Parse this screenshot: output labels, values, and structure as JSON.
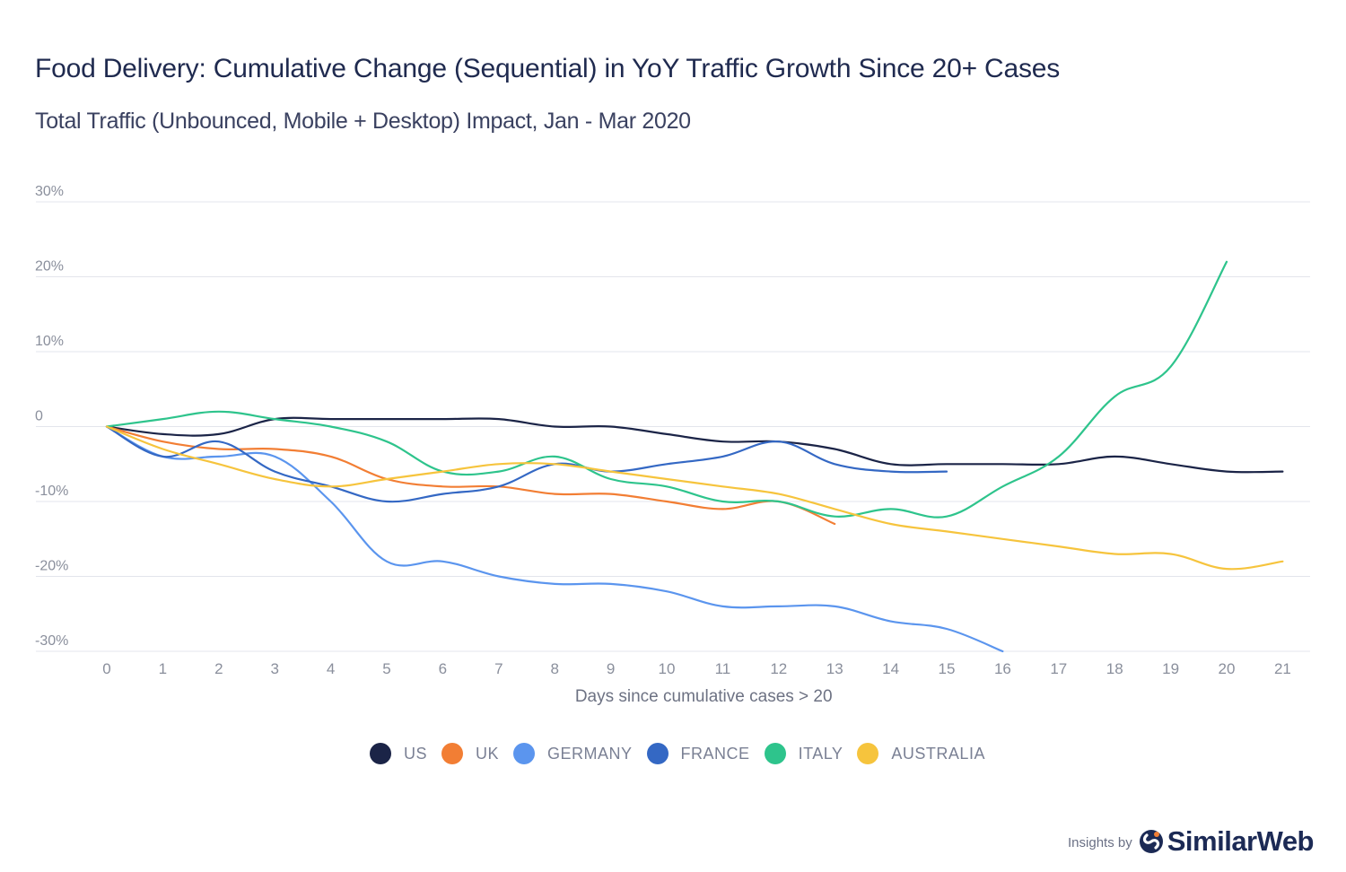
{
  "header": {
    "title": "Food Delivery: Cumulative Change (Sequential) in YoY Traffic Growth Since 20+ Cases",
    "subtitle": "Total Traffic (Unbounced, Mobile + Desktop) Impact, Jan - Mar 2020"
  },
  "branding": {
    "prefix": "Insights by",
    "name": "SimilarWeb",
    "logo_icon": "similarweb-logo-icon"
  },
  "colors": {
    "grid": "#e3e5ec",
    "tick_text": "#8a8f9c",
    "axis_title": "#6d7283"
  },
  "chart_data": {
    "type": "line",
    "title": "Food Delivery: Cumulative Change (Sequential) in YoY Traffic Growth Since 20+ Cases",
    "subtitle": "Total Traffic (Unbounced, Mobile + Desktop) Impact, Jan - Mar 2020",
    "xlabel": "Days since cumulative cases > 20",
    "ylabel": "",
    "x_ticks": [
      "0",
      "1",
      "2",
      "3",
      "4",
      "5",
      "6",
      "7",
      "8",
      "9",
      "10",
      "11",
      "12",
      "13",
      "14",
      "15",
      "16",
      "17",
      "18",
      "19",
      "20",
      "21"
    ],
    "y_ticks": [
      30,
      20,
      10,
      0,
      -10,
      -20,
      -30
    ],
    "y_tick_labels": [
      "30%",
      "20%",
      "10%",
      "0",
      "-10%",
      "-20%",
      "-30%"
    ],
    "xlim": [
      0,
      21
    ],
    "ylim": [
      -30,
      30
    ],
    "grid": true,
    "legend_position": "bottom-center",
    "series": [
      {
        "name": "US",
        "color": "#1b2447",
        "x": [
          0,
          1,
          2,
          3,
          4,
          5,
          6,
          7,
          8,
          9,
          10,
          11,
          12,
          13,
          14,
          15,
          16,
          17,
          18,
          19,
          20,
          21
        ],
        "values": [
          0,
          -1,
          -1,
          1,
          1,
          1,
          1,
          1,
          0,
          0,
          -1,
          -2,
          -2,
          -3,
          -5,
          -5,
          -5,
          -5,
          -4,
          -5,
          -6,
          -6
        ]
      },
      {
        "name": "UK",
        "color": "#f27e34",
        "x": [
          0,
          1,
          2,
          3,
          4,
          5,
          6,
          7,
          8,
          9,
          10,
          11,
          12,
          13
        ],
        "values": [
          0,
          -2,
          -3,
          -3,
          -4,
          -7,
          -8,
          -8,
          -9,
          -9,
          -10,
          -11,
          -10,
          -13
        ]
      },
      {
        "name": "GERMANY",
        "color": "#5b95ee",
        "x": [
          0,
          1,
          2,
          3,
          4,
          5,
          6,
          7,
          8,
          9,
          10,
          11,
          12,
          13,
          14,
          15,
          16
        ],
        "values": [
          0,
          -4,
          -4,
          -4,
          -10,
          -18,
          -18,
          -20,
          -21,
          -21,
          -22,
          -24,
          -24,
          -24,
          -26,
          -27,
          -30
        ]
      },
      {
        "name": "FRANCE",
        "color": "#3468c4",
        "x": [
          0,
          1,
          2,
          3,
          4,
          5,
          6,
          7,
          8,
          9,
          10,
          11,
          12,
          13,
          14,
          15
        ],
        "values": [
          0,
          -4,
          -2,
          -6,
          -8,
          -10,
          -9,
          -8,
          -5,
          -6,
          -5,
          -4,
          -2,
          -5,
          -6,
          -6
        ]
      },
      {
        "name": "ITALY",
        "color": "#2ec48c",
        "x": [
          0,
          1,
          2,
          3,
          4,
          5,
          6,
          7,
          8,
          9,
          10,
          11,
          12,
          13,
          14,
          15,
          16,
          17,
          18,
          19,
          20
        ],
        "values": [
          0,
          1,
          2,
          1,
          0,
          -2,
          -6,
          -6,
          -4,
          -7,
          -8,
          -10,
          -10,
          -12,
          -11,
          -12,
          -8,
          -4,
          4,
          8,
          22
        ]
      },
      {
        "name": "AUSTRALIA",
        "color": "#f6c43d",
        "x": [
          0,
          1,
          2,
          3,
          4,
          5,
          6,
          7,
          8,
          9,
          10,
          11,
          12,
          13,
          14,
          15,
          16,
          17,
          18,
          19,
          20,
          21
        ],
        "values": [
          0,
          -3,
          -5,
          -7,
          -8,
          -7,
          -6,
          -5,
          -5,
          -6,
          -7,
          -8,
          -9,
          -11,
          -13,
          -14,
          -15,
          -16,
          -17,
          -17,
          -19,
          -18
        ]
      }
    ]
  }
}
